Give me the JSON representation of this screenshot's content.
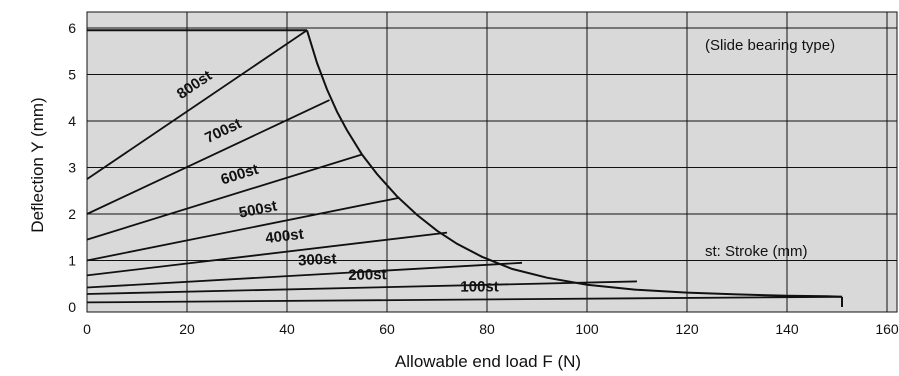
{
  "chart_data": {
    "type": "line",
    "xlabel": "Allowable end load F (N)",
    "ylabel": "Deflection Y (mm)",
    "xlim": [
      0,
      160
    ],
    "ylim": [
      0,
      6.2
    ],
    "xticks": [
      "0",
      "20",
      "40",
      "60",
      "80",
      "100",
      "120",
      "140",
      "160"
    ],
    "yticks": [
      "0",
      "1",
      "2",
      "3",
      "4",
      "5",
      "6"
    ],
    "grid": true,
    "background": "#d9d9d9",
    "annotations": [
      "(Slide bearing type)",
      "st: Stroke (mm)"
    ],
    "max_load_envelope": {
      "x": [
        44,
        46,
        48,
        50,
        52,
        55,
        58,
        62,
        66,
        70,
        74,
        79,
        85,
        92,
        100,
        110,
        120,
        130,
        140,
        148,
        151
      ],
      "y": [
        5.95,
        5.25,
        4.68,
        4.2,
        3.8,
        3.28,
        2.86,
        2.38,
        1.98,
        1.64,
        1.36,
        1.08,
        0.82,
        0.63,
        0.48,
        0.37,
        0.31,
        0.27,
        0.24,
        0.23,
        0.22
      ]
    },
    "series": [
      {
        "name": "800st",
        "x": [
          0,
          44
        ],
        "y": [
          2.75,
          5.95
        ]
      },
      {
        "name": "700st",
        "x": [
          0,
          48.5
        ],
        "y": [
          2.0,
          4.45
        ]
      },
      {
        "name": "600st",
        "x": [
          0,
          55
        ],
        "y": [
          1.45,
          3.28
        ]
      },
      {
        "name": "500st",
        "x": [
          0,
          62.5
        ],
        "y": [
          1.0,
          2.35
        ]
      },
      {
        "name": "400st",
        "x": [
          0,
          72
        ],
        "y": [
          0.68,
          1.6
        ]
      },
      {
        "name": "300st",
        "x": [
          0,
          87
        ],
        "y": [
          0.42,
          0.95
        ]
      },
      {
        "name": "200st",
        "x": [
          0,
          110
        ],
        "y": [
          0.28,
          0.55
        ]
      },
      {
        "name": "100st",
        "x": [
          0,
          151
        ],
        "y": [
          0.1,
          0.22
        ]
      }
    ],
    "top_limit": {
      "x": [
        0,
        44
      ],
      "y": [
        5.95,
        5.95
      ]
    },
    "end_limit": {
      "x": [
        151,
        151
      ],
      "y": [
        0,
        0.22
      ]
    }
  }
}
